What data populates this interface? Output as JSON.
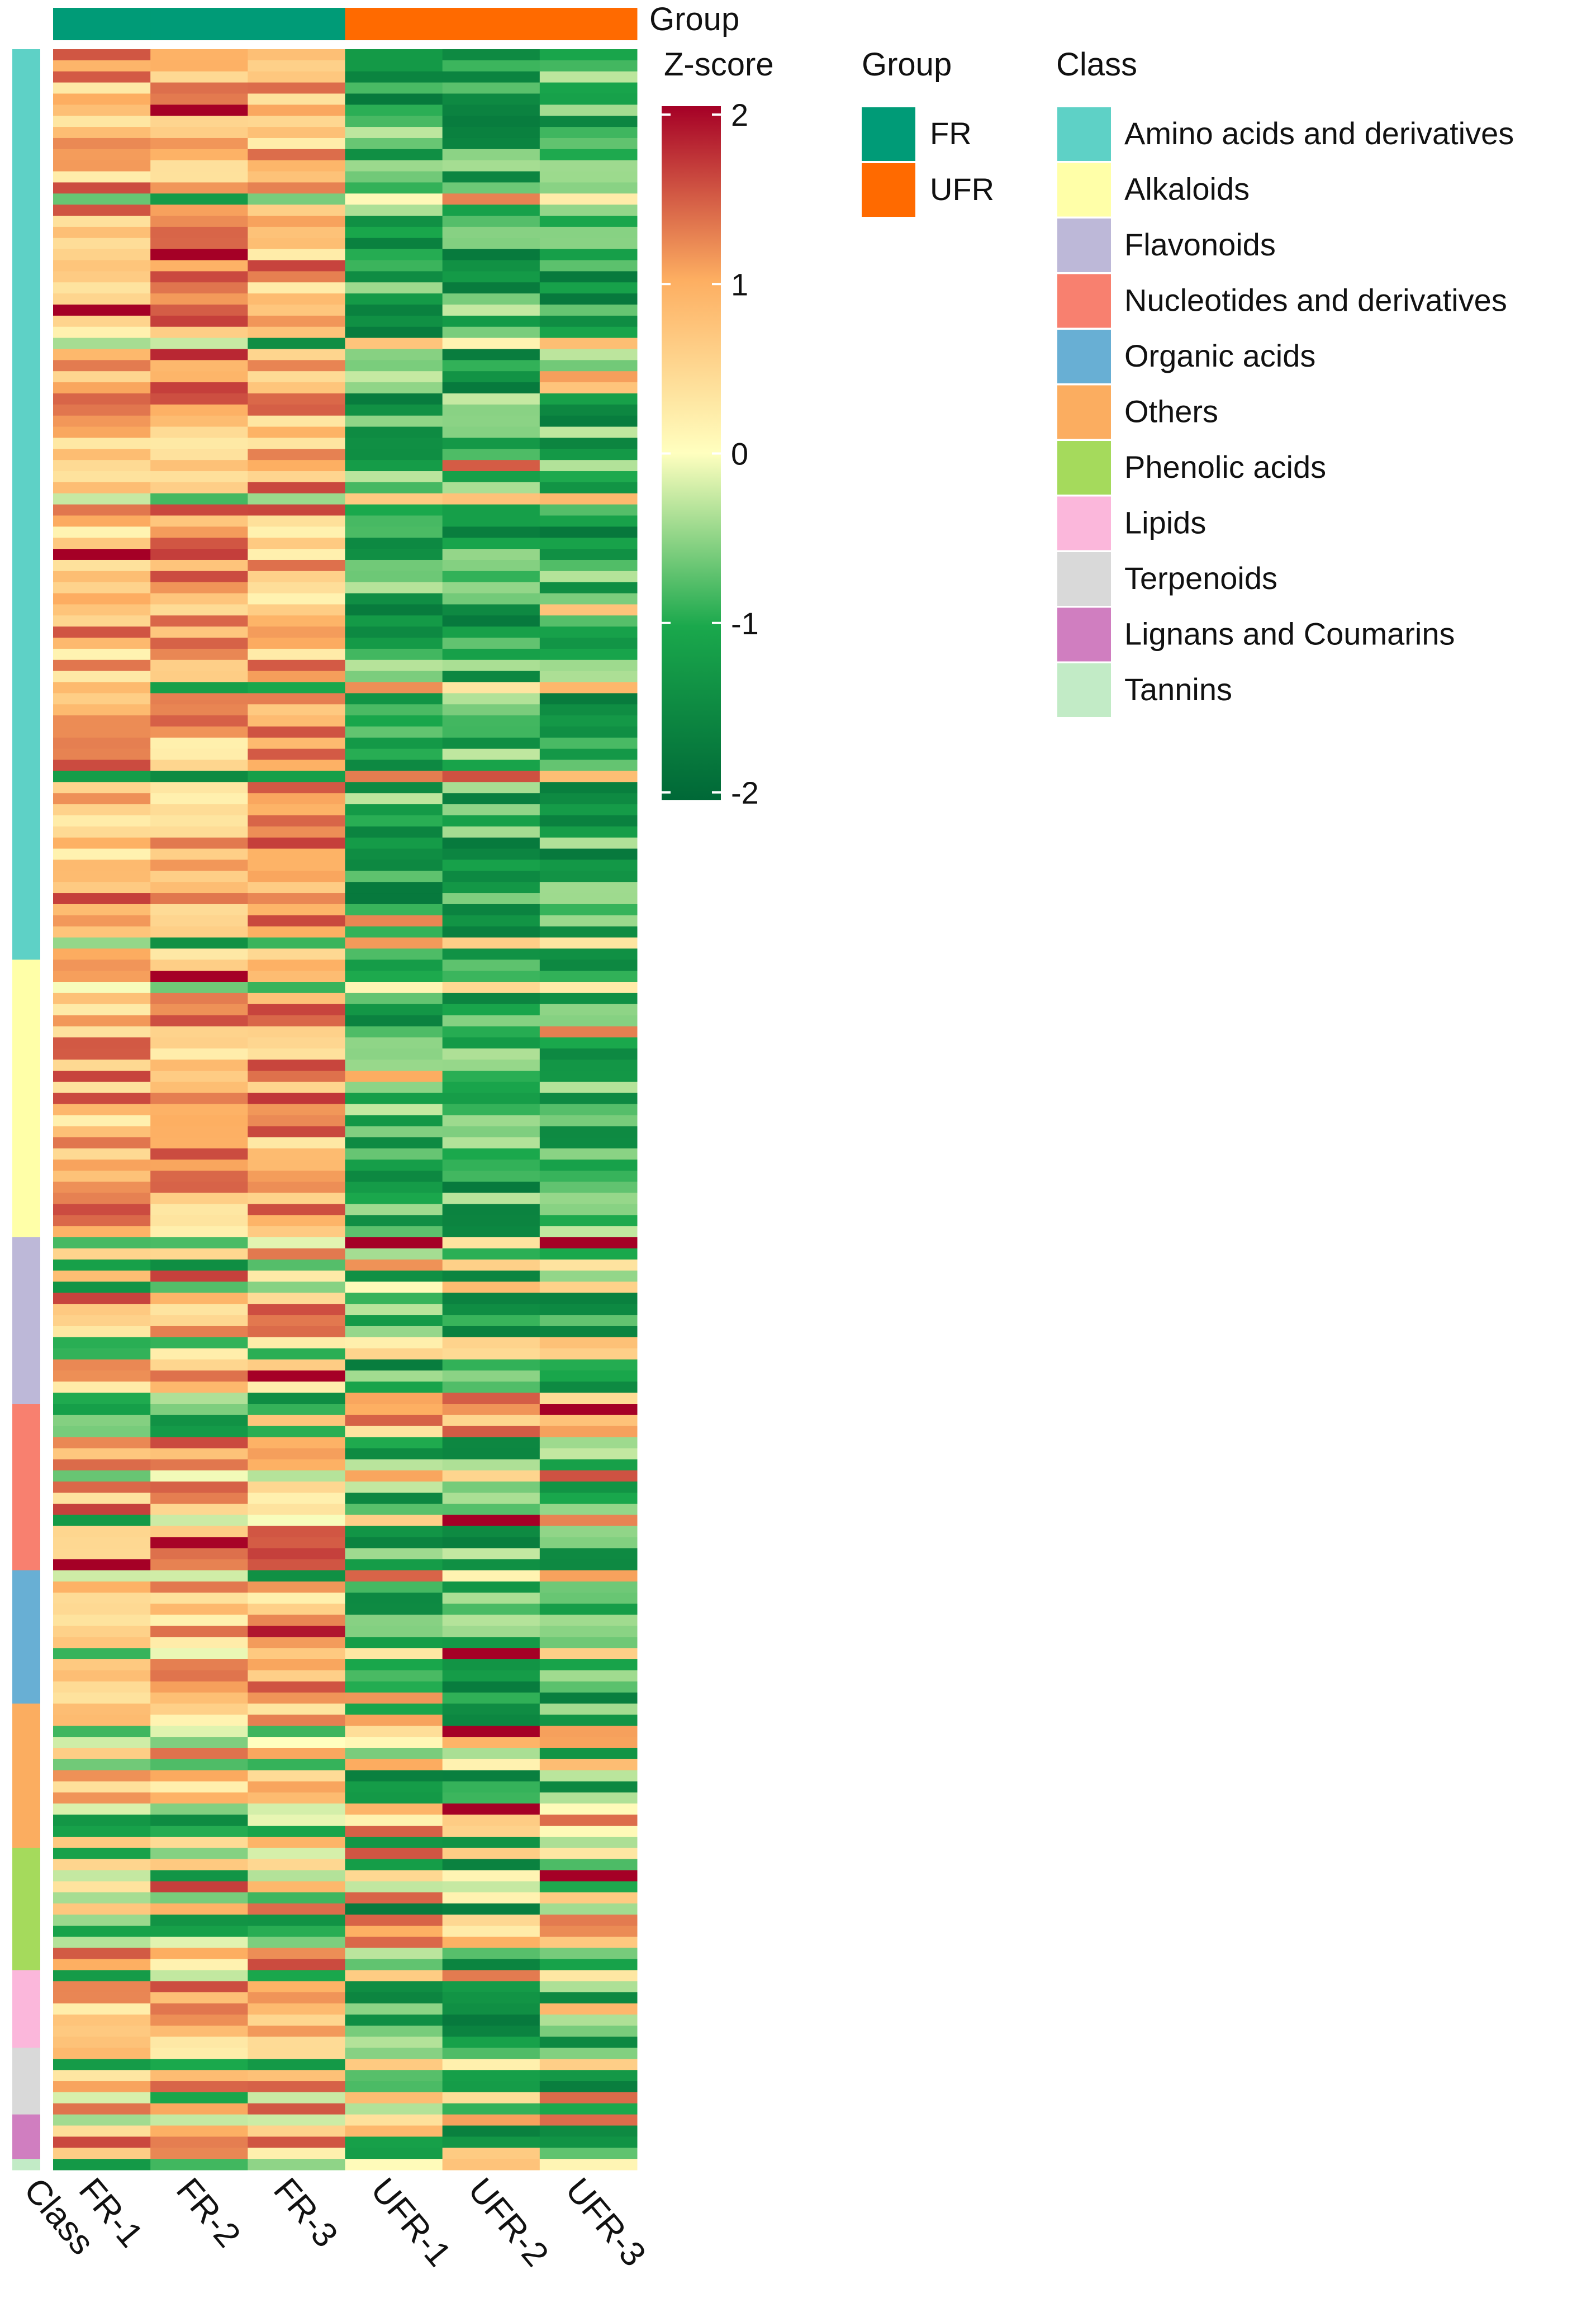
{
  "chart_data": {
    "type": "heatmap",
    "columns": [
      "FR-1",
      "FR-2",
      "FR-3",
      "UFR-1",
      "UFR-2",
      "UFR-3"
    ],
    "row_annotation_label": "Class",
    "column_annotation": {
      "label": "Group",
      "values": [
        "FR",
        "FR",
        "FR",
        "UFR",
        "UFR",
        "UFR"
      ]
    },
    "color_scale": {
      "title": "Z-score",
      "min": -2,
      "max": 2,
      "ticks": [
        "2",
        "1",
        "0",
        "-1",
        "-2"
      ],
      "stops": [
        {
          "value": -2,
          "color": "#006837"
        },
        {
          "value": -1,
          "color": "#1aa84c"
        },
        {
          "value": 0,
          "color": "#ffffbf"
        },
        {
          "value": 1,
          "color": "#fdae61"
        },
        {
          "value": 2,
          "color": "#a50026"
        }
      ]
    },
    "group_legend": {
      "title": "Group",
      "items": [
        {
          "name": "FR",
          "color": "#009b77"
        },
        {
          "name": "UFR",
          "color": "#ff6a00"
        }
      ]
    },
    "class_legend": {
      "title": "Class",
      "items": [
        {
          "name": "Amino acids and derivatives",
          "color": "#5ed1c6",
          "rows": 82
        },
        {
          "name": "Alkaloids",
          "color": "#ffffa8",
          "rows": 25
        },
        {
          "name": "Flavonoids",
          "color": "#bdb8d8",
          "rows": 15
        },
        {
          "name": "Nucleotides and derivatives",
          "color": "#f8806f",
          "rows": 15
        },
        {
          "name": "Organic acids",
          "color": "#68afd4",
          "rows": 12
        },
        {
          "name": "Others",
          "color": "#fbad60",
          "rows": 13
        },
        {
          "name": "Phenolic acids",
          "color": "#a5da5c",
          "rows": 11
        },
        {
          "name": "Lipids",
          "color": "#fbb7db",
          "rows": 7
        },
        {
          "name": "Terpenoids",
          "color": "#d9d9d9",
          "rows": 6
        },
        {
          "name": "Lignans and Coumarins",
          "color": "#d07ec0",
          "rows": 4
        },
        {
          "name": "Tannins",
          "color": "#c2ebc6",
          "rows": 1
        }
      ]
    }
  }
}
